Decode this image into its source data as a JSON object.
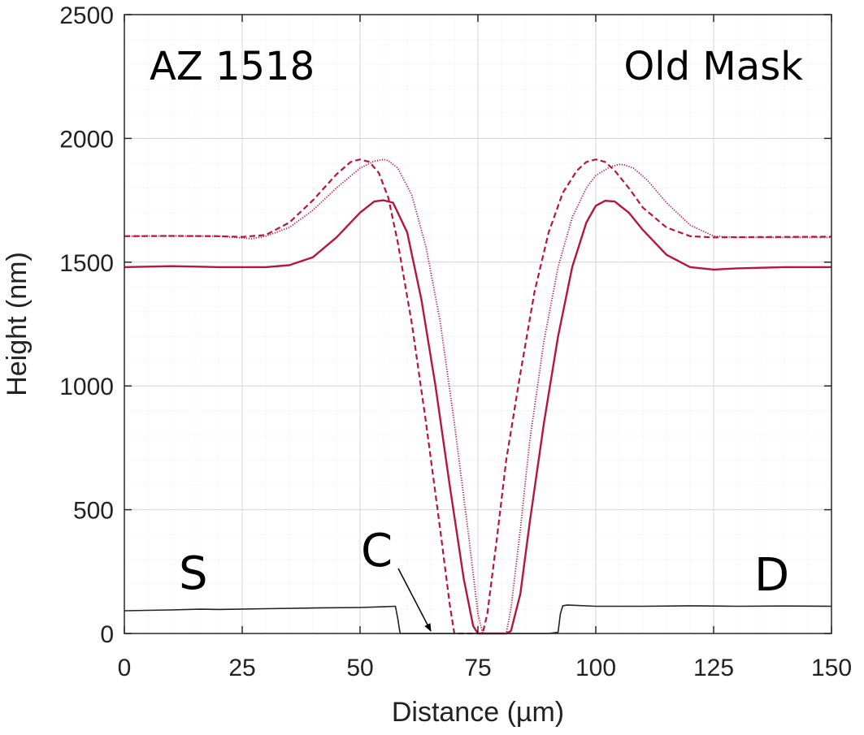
{
  "chart_data": {
    "type": "line",
    "title": "",
    "xlabel": "Distance (µm)",
    "ylabel": "Height (nm)",
    "xlim": [
      0,
      150
    ],
    "ylim": [
      0,
      2500
    ],
    "xticks": [
      0,
      25,
      50,
      75,
      100,
      125,
      150
    ],
    "yticks": [
      0,
      500,
      1000,
      1500,
      2000,
      2500
    ],
    "xtick_labels": [
      "0",
      "25",
      "50",
      "75",
      "100",
      "125",
      "150"
    ],
    "ytick_labels": [
      "0",
      "500",
      "1000",
      "1500",
      "2000",
      "2500"
    ],
    "grid": true,
    "minor_grid": true,
    "legend": "none",
    "annotations": {
      "top_left": "AZ 1518",
      "top_right": "Old Mask",
      "source": "S",
      "channel": "C",
      "drain": "D"
    },
    "series": [
      {
        "style": "solid",
        "color": "#b5163f",
        "x": [
          0,
          10,
          20,
          30,
          35,
          40,
          45,
          50,
          53,
          55,
          57,
          60,
          63,
          66,
          69,
          72,
          74,
          75,
          78,
          81,
          82,
          84,
          86,
          89,
          92,
          95,
          98,
          100,
          102,
          104,
          107,
          110,
          115,
          120,
          125,
          130,
          140,
          150
        ],
        "y": [
          1480,
          1484,
          1480,
          1480,
          1488,
          1520,
          1600,
          1700,
          1745,
          1750,
          1740,
          1620,
          1350,
          1000,
          600,
          220,
          30,
          0,
          0,
          0,
          10,
          160,
          450,
          850,
          1200,
          1480,
          1660,
          1728,
          1748,
          1745,
          1700,
          1630,
          1530,
          1480,
          1470,
          1475,
          1480,
          1480
        ]
      },
      {
        "style": "dashed",
        "color": "#b5163f",
        "x": [
          0,
          10,
          20,
          25,
          30,
          35,
          40,
          45,
          48,
          50,
          52,
          54,
          56,
          58,
          61,
          64,
          67,
          69,
          70,
          73,
          76,
          77,
          79,
          81,
          84,
          87,
          90,
          93,
          96,
          98,
          100,
          102,
          104,
          107,
          110,
          115,
          120,
          125,
          130,
          140,
          150
        ],
        "y": [
          1605,
          1606,
          1605,
          1602,
          1610,
          1660,
          1750,
          1855,
          1905,
          1915,
          1905,
          1860,
          1760,
          1580,
          1250,
          850,
          420,
          120,
          0,
          0,
          0,
          80,
          380,
          700,
          1050,
          1380,
          1620,
          1780,
          1870,
          1905,
          1915,
          1905,
          1870,
          1800,
          1720,
          1640,
          1605,
          1600,
          1601,
          1602,
          1603
        ]
      },
      {
        "style": "dotted",
        "color": "#b5163f",
        "x": [
          0,
          10,
          20,
          27,
          30,
          35,
          40,
          45,
          50,
          53,
          55,
          56,
          58,
          61,
          64,
          67,
          70,
          73,
          75,
          76,
          79,
          81,
          82,
          84,
          86,
          89,
          92,
          95,
          98,
          100,
          103,
          105,
          106,
          108,
          111,
          115,
          120,
          125,
          130,
          140,
          150
        ],
        "y": [
          1605,
          1606,
          1605,
          1595,
          1605,
          1640,
          1710,
          1800,
          1880,
          1908,
          1915,
          1910,
          1880,
          1770,
          1560,
          1260,
          850,
          400,
          80,
          0,
          0,
          0,
          100,
          420,
          780,
          1180,
          1480,
          1680,
          1800,
          1850,
          1885,
          1895,
          1893,
          1880,
          1830,
          1740,
          1650,
          1605,
          1600,
          1600,
          1600
        ]
      },
      {
        "style": "solid-thin",
        "color": "#222222",
        "x": [
          0,
          10,
          16,
          20,
          30,
          40,
          50,
          55,
          57.5,
          58,
          58.5,
          60,
          70,
          80,
          90,
          92,
          92.5,
          93,
          94,
          100,
          110,
          120,
          130,
          140,
          150
        ],
        "y": [
          92,
          95,
          98,
          97,
          100,
          103,
          105,
          108,
          110,
          60,
          0,
          0,
          0,
          0,
          0,
          5,
          80,
          112,
          115,
          110,
          110,
          112,
          110,
          111,
          110
        ]
      }
    ]
  }
}
